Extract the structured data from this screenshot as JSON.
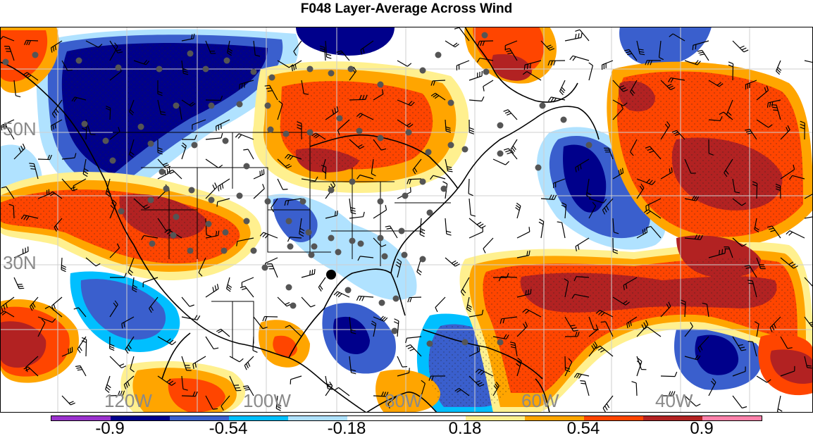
{
  "title": "F048 Layer-Average Across Wind",
  "lat_labels": [
    "50N",
    "30N"
  ],
  "lon_labels": [
    "120W",
    "100W",
    "80W",
    "60W",
    "40W"
  ],
  "colorbar": {
    "colors": [
      "#9a32cd",
      "#00008b",
      "#3a5fcd",
      "#00bfff",
      "#b0e2ff",
      "#ffffff",
      "#ffffff",
      "#fff08f",
      "#ffa500",
      "#ff4500",
      "#b22222",
      "#ff82ab"
    ],
    "labels": [
      "-0.9",
      "-0.54",
      "-0.18",
      "0.18",
      "0.54",
      "0.9"
    ]
  },
  "map_elements": {
    "station_dot_color": "#555555",
    "highlight_dot_color": "#000000"
  }
}
